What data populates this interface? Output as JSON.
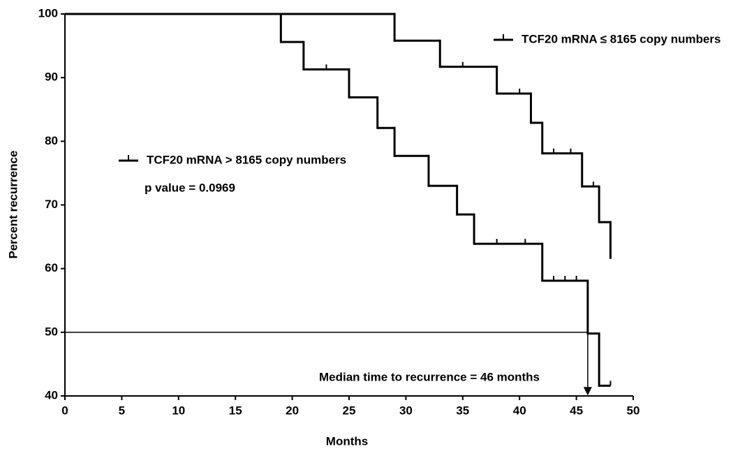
{
  "chart_data": {
    "type": "survival",
    "x_label": "Months",
    "y_label": "Percent recurrence",
    "xlim": [
      0,
      50
    ],
    "xticks": [
      0,
      5,
      10,
      15,
      20,
      25,
      30,
      35,
      40,
      45,
      50
    ],
    "ylim": [
      40,
      100
    ],
    "yticks": [
      40,
      50,
      60,
      70,
      80,
      90,
      100
    ],
    "follow_up_end": 48,
    "reference_y": 50,
    "median_x": 46,
    "annotations": [
      "p value = 0.0969",
      "Median time to recurrence = 46 months"
    ],
    "series": [
      {
        "name": "TCF20 mRNA ≤ 8165 copy numbers",
        "color": "#000000",
        "x": [
          0,
          29,
          33,
          38,
          41,
          42,
          45.5,
          47,
          48
        ],
        "values": [
          100,
          95.8,
          91.7,
          87.5,
          82.9,
          78.1,
          72.9,
          67.3,
          61.7
        ],
        "censored_x": [
          35,
          40,
          43,
          44.5,
          46.5
        ],
        "censored_values": [
          91.7,
          87.5,
          78.1,
          78.1,
          72.9
        ]
      },
      {
        "name": "TCF20 mRNA > 8165 copy numbers",
        "color": "#000000",
        "x": [
          0,
          19,
          21,
          25,
          27.5,
          29,
          32,
          34.5,
          36,
          42,
          46,
          47
        ],
        "values": [
          100,
          95.6,
          91.3,
          86.9,
          82.1,
          77.7,
          73.0,
          68.5,
          63.9,
          58.1,
          49.8,
          41.6
        ],
        "censored_x": [
          23,
          38,
          40.5,
          43,
          44,
          45,
          48
        ],
        "censored_values": [
          91.3,
          63.9,
          63.9,
          58.1,
          58.1,
          58.1,
          41.6
        ]
      }
    ]
  }
}
